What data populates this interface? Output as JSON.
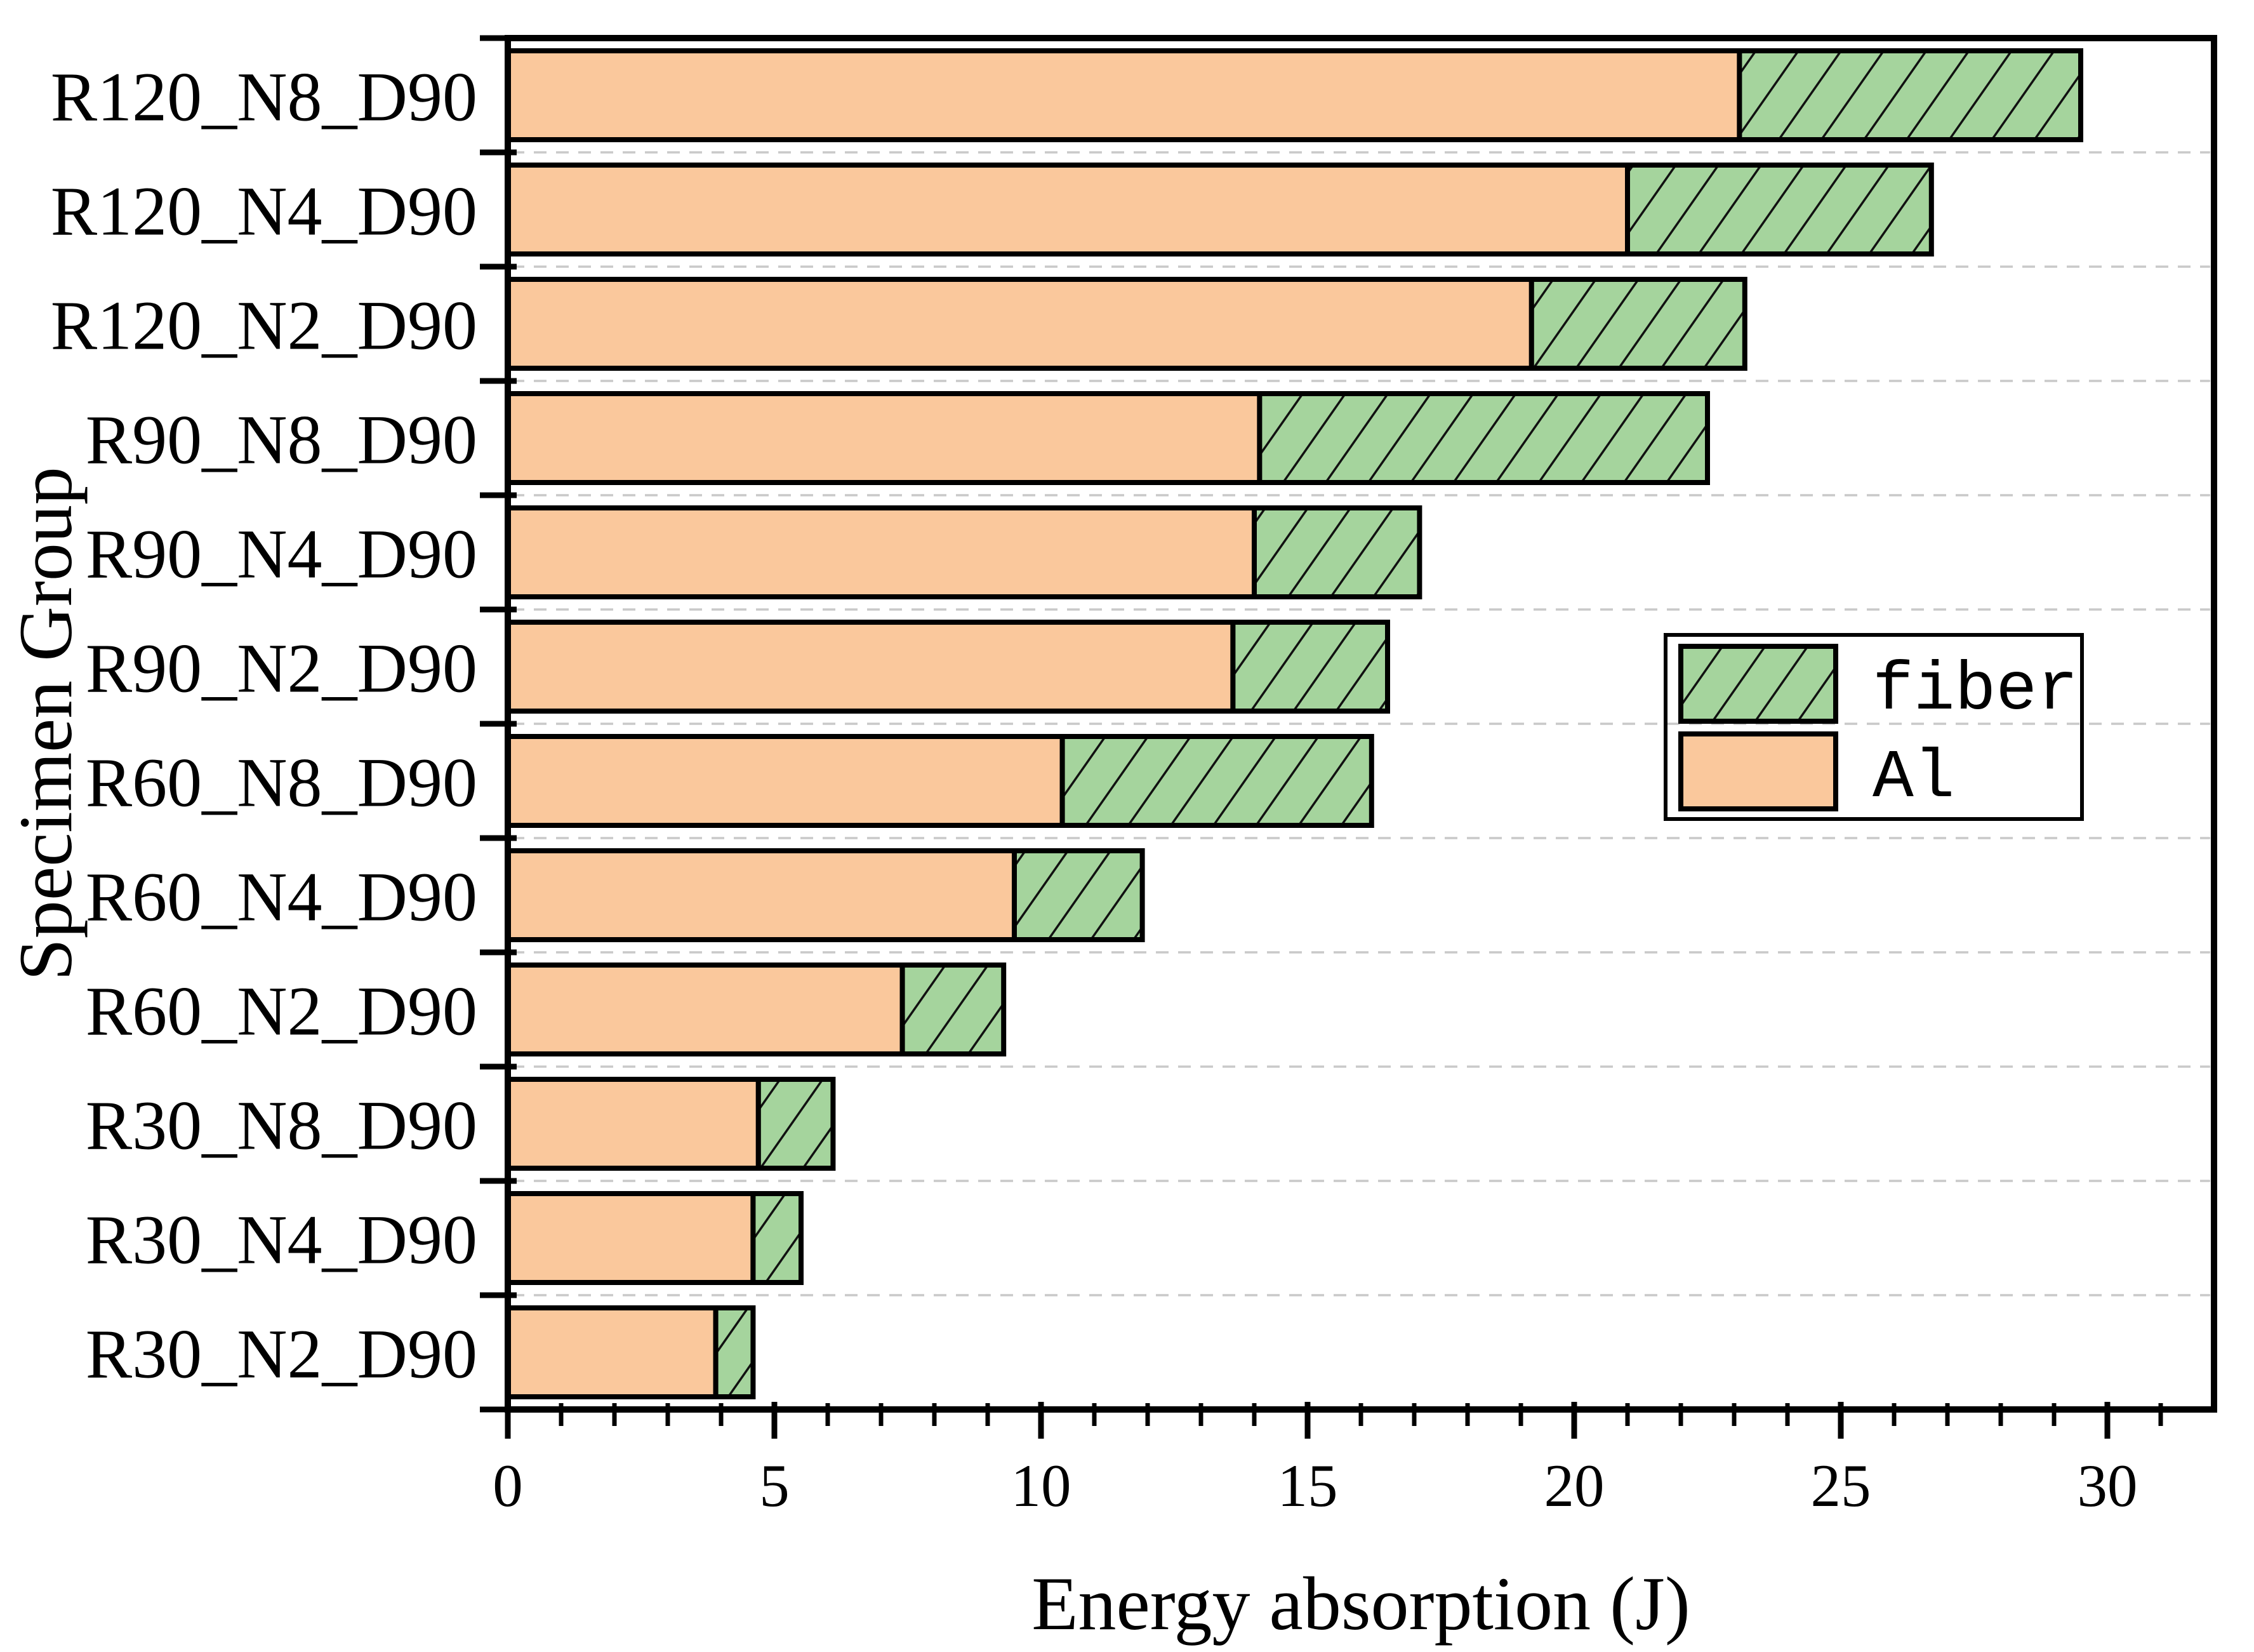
{
  "axes": {
    "xlabel": "Energy absorption (J)",
    "ylabel": "Specimen Group"
  },
  "legend": {
    "items": [
      {
        "label": "fiber",
        "swatch": "green-hatched"
      },
      {
        "label": "Al",
        "swatch": "orange"
      }
    ]
  },
  "style": {
    "al_fill": "#FAC89C",
    "fiber_fill": "#A5D49D",
    "hatch_color": "#111111",
    "grid_color": "#C9C9C9",
    "axis_color": "#000000",
    "background": "#FFFFFF"
  },
  "chart_data": {
    "type": "bar",
    "orientation": "horizontal",
    "stacked": true,
    "title": "",
    "xlabel": "Energy absorption (J)",
    "ylabel": "Specimen Group",
    "categories": [
      "R120_N8_D90",
      "R120_N4_D90",
      "R120_N2_D90",
      "R90_N8_D90",
      "R90_N4_D90",
      "R90_N2_D90",
      "R60_N8_D90",
      "R60_N4_D90",
      "R60_N2_D90",
      "R30_N8_D90",
      "R30_N4_D90",
      "R30_N2_D90"
    ],
    "series": [
      {
        "name": "Al",
        "color": "#FAC89C",
        "hatch": "none",
        "values": [
          23.1,
          21.0,
          19.2,
          14.1,
          14.0,
          13.6,
          10.4,
          9.5,
          7.4,
          4.7,
          4.6,
          3.9
        ]
      },
      {
        "name": "fiber",
        "color": "#A5D49D",
        "hatch": "/",
        "values": [
          6.4,
          5.7,
          4.0,
          8.4,
          3.1,
          2.9,
          5.8,
          2.4,
          1.9,
          1.4,
          0.9,
          0.7
        ]
      }
    ],
    "totals": [
      29.5,
      26.7,
      23.2,
      22.5,
      17.1,
      16.5,
      16.2,
      11.9,
      9.3,
      6.1,
      5.5,
      4.6
    ],
    "xlim": [
      0,
      32
    ],
    "xticks": [
      0,
      5,
      10,
      15,
      20,
      25,
      30
    ],
    "x_minor_step": 1,
    "grid": "horizontal dashed between categories",
    "legend_position": "right-middle"
  }
}
